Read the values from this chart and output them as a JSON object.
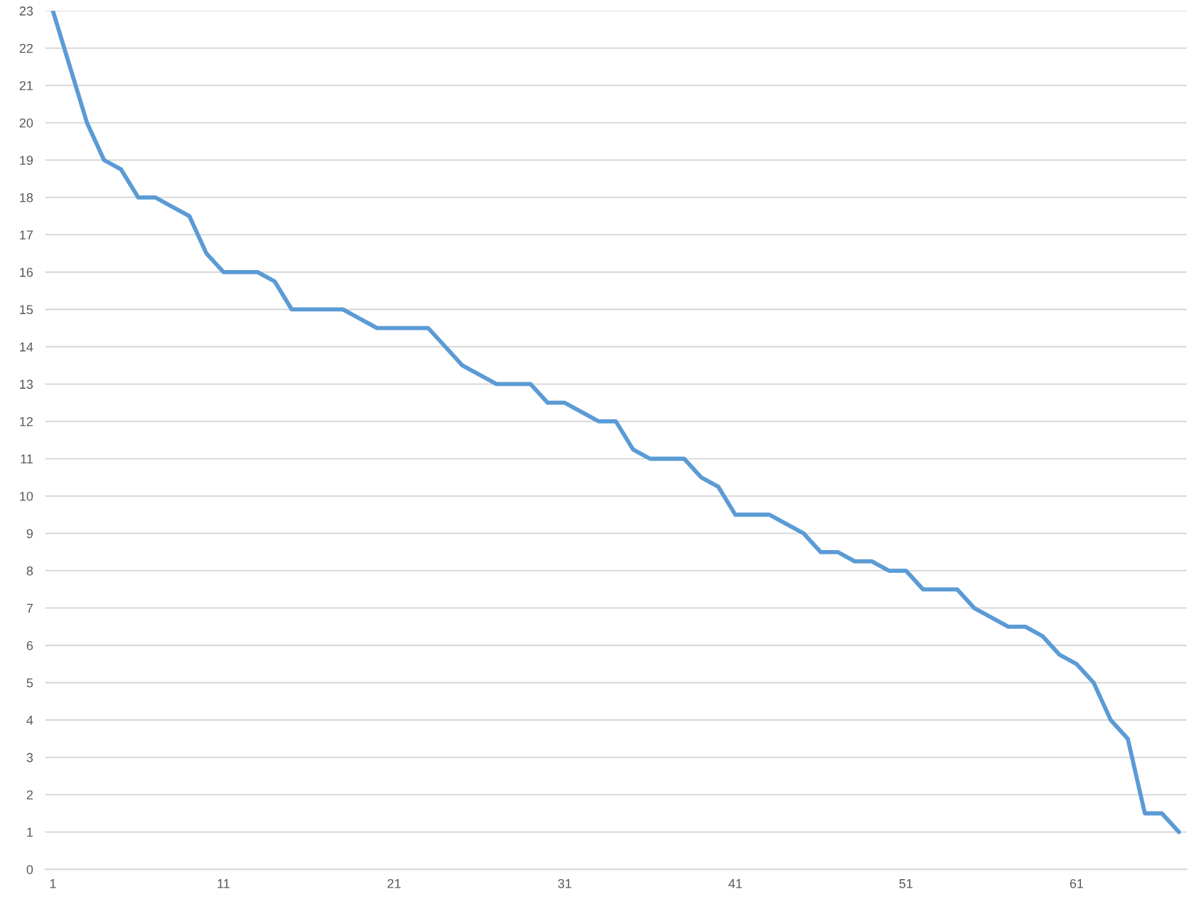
{
  "chart_data": {
    "type": "line",
    "categories": [
      "1",
      null,
      null,
      null,
      null,
      null,
      null,
      null,
      null,
      null,
      "11",
      null,
      null,
      null,
      null,
      null,
      null,
      null,
      null,
      null,
      "21",
      null,
      null,
      null,
      null,
      null,
      null,
      null,
      null,
      null,
      "31",
      null,
      null,
      null,
      null,
      null,
      null,
      null,
      null,
      null,
      "41",
      null,
      null,
      null,
      null,
      null,
      null,
      null,
      null,
      null,
      "51",
      null,
      null,
      null,
      null,
      null,
      null,
      null,
      null,
      null,
      "61",
      null,
      null,
      null,
      null,
      null,
      null
    ],
    "series": [
      {
        "color": "#5b9bd5",
        "values": [
          23,
          21.5,
          20,
          19,
          18.75,
          18,
          18,
          17.75,
          17.5,
          16.5,
          16,
          16,
          16,
          15.75,
          15,
          15,
          15,
          15,
          14.75,
          14.5,
          14.5,
          14.5,
          14.5,
          14,
          13.5,
          13.25,
          13,
          13,
          13,
          12.5,
          12.5,
          12.25,
          12,
          12,
          11.25,
          11,
          11,
          11,
          10.5,
          10.25,
          9.5,
          9.5,
          9.5,
          9.25,
          9,
          8.5,
          8.5,
          8.25,
          8.25,
          8,
          8,
          7.5,
          7.5,
          7.5,
          7,
          6.75,
          6.5,
          6.5,
          6.25,
          5.75,
          5.5,
          5,
          4,
          3.5,
          1.5,
          1.5,
          1
        ]
      }
    ],
    "ylim": [
      0,
      23
    ],
    "yticks": [
      0,
      1,
      2,
      3,
      4,
      5,
      6,
      7,
      8,
      9,
      10,
      11,
      12,
      13,
      14,
      15,
      16,
      17,
      18,
      19,
      20,
      21,
      22,
      23
    ],
    "grid": "y",
    "marker": "none",
    "line_style": "solid"
  }
}
